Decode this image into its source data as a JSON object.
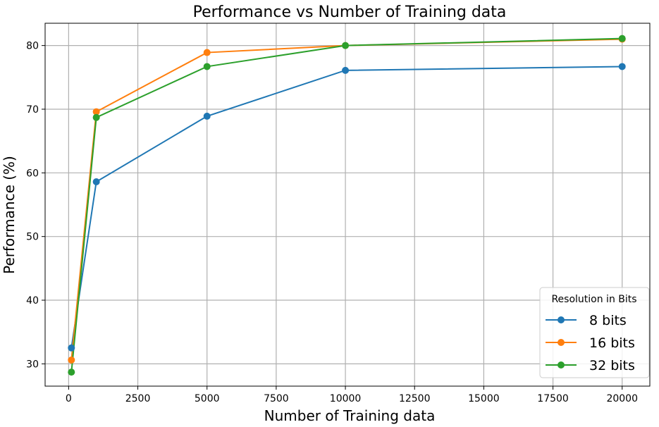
{
  "chart_data": {
    "type": "line",
    "title": "Performance vs Number of Training data",
    "xlabel": "Number of Training data",
    "ylabel": "Performance (%)",
    "x": [
      100,
      1000,
      5000,
      10000,
      20000
    ],
    "xlim": [
      -850,
      21000
    ],
    "ylim": [
      26.5,
      83.5
    ],
    "xticks": [
      0,
      2500,
      5000,
      7500,
      10000,
      12500,
      15000,
      17500,
      20000
    ],
    "yticks": [
      30,
      40,
      50,
      60,
      70,
      80
    ],
    "grid": true,
    "legend": {
      "title": "Resolution in Bits",
      "position": "lower-right"
    },
    "series": [
      {
        "name": "8 bits",
        "color": "#1f77b4",
        "values": [
          32.5,
          58.6,
          68.9,
          76.1,
          76.7
        ]
      },
      {
        "name": "16 bits",
        "color": "#ff7f0e",
        "values": [
          30.6,
          69.6,
          78.9,
          80.0,
          81.0
        ]
      },
      {
        "name": "32 bits",
        "color": "#2ca02c",
        "values": [
          28.7,
          68.7,
          76.7,
          80.0,
          81.1
        ]
      }
    ]
  }
}
